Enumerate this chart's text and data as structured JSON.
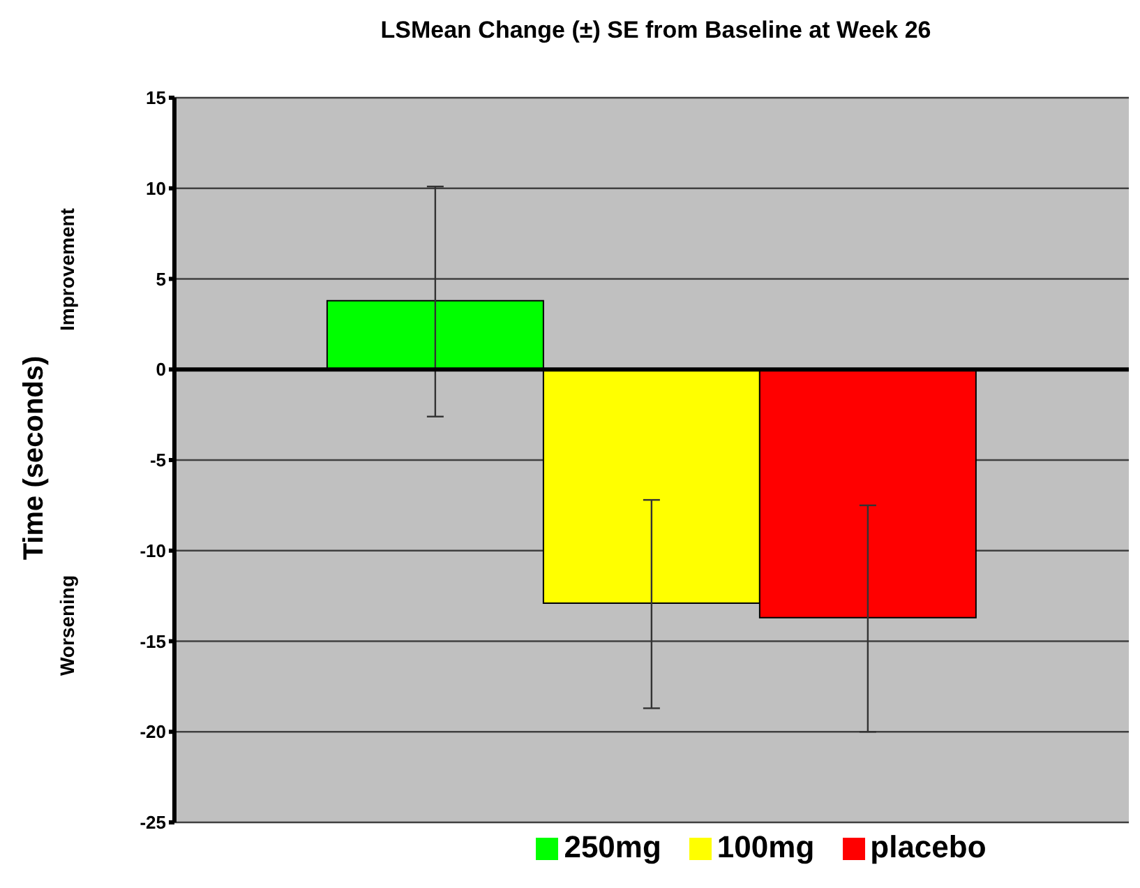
{
  "chart_data": {
    "type": "bar",
    "title": "LSMean Change (±) SE from Baseline at Week 26",
    "ylabel": "Time (seconds)",
    "annotations": [
      "Improvement",
      "Worsening"
    ],
    "categories": [
      null
    ],
    "series": [
      {
        "name": "250mg",
        "color": "#00ff00",
        "values": [
          3.8
        ],
        "errors": [
          [
            -2.6,
            10.1
          ]
        ]
      },
      {
        "name": "100mg",
        "color": "#ffff00",
        "values": [
          -12.9
        ],
        "errors": [
          [
            -18.7,
            -7.2
          ]
        ]
      },
      {
        "name": "placebo",
        "color": "#ff0000",
        "values": [
          -13.7
        ],
        "errors": [
          [
            -20.0,
            -7.5
          ]
        ]
      }
    ],
    "ylim": [
      -25,
      15
    ],
    "yticks": [
      -25,
      -20,
      -15,
      -10,
      -5,
      0,
      5,
      10,
      15
    ],
    "ref_lines": [
      {
        "axis": "y",
        "value": 0,
        "color": "#000000"
      }
    ],
    "grid": "y",
    "legend": "bottom"
  }
}
